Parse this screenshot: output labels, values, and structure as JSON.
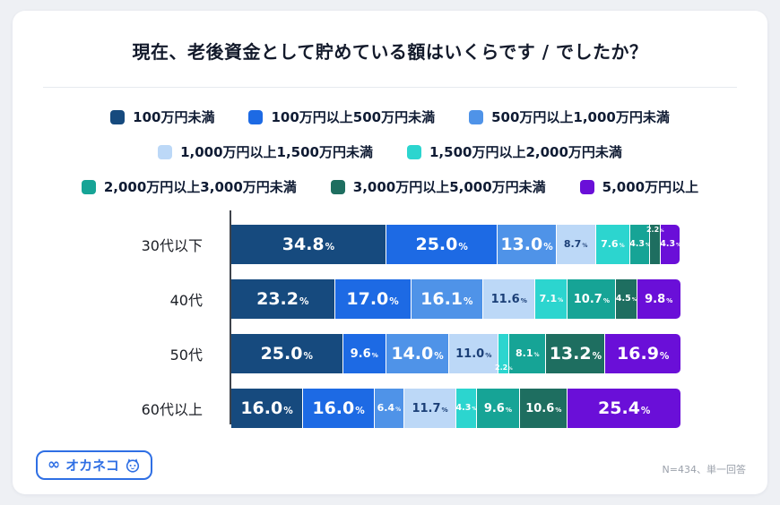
{
  "chart_data": {
    "type": "bar",
    "variant": "horizontal-stacked",
    "title": "現在、老後資金として貯めている額はいくらです / でしたか？",
    "categories": [
      "30代以下",
      "40代",
      "50代",
      "60代以上"
    ],
    "series": [
      {
        "name": "100万円未満",
        "color": "#164a7e",
        "values": [
          34.8,
          23.2,
          25.0,
          16.0
        ]
      },
      {
        "name": "100万円以上500万円未満",
        "color": "#1d6ae4",
        "values": [
          25.0,
          17.0,
          9.6,
          16.0
        ]
      },
      {
        "name": "500万円以上1,000万円未満",
        "color": "#4f93e8",
        "values": [
          13.0,
          16.1,
          14.0,
          6.4
        ]
      },
      {
        "name": "1,000万円以上1,500万円未満",
        "color": "#bcd8f7",
        "values": [
          8.7,
          11.6,
          11.0,
          11.7
        ]
      },
      {
        "name": "1,500万円以上2,000万円未満",
        "color": "#2cd5cf",
        "values": [
          7.6,
          7.1,
          2.2,
          4.3
        ]
      },
      {
        "name": "2,000万円以上3,000万円未満",
        "color": "#16a496",
        "values": [
          4.3,
          10.7,
          8.1,
          9.6
        ]
      },
      {
        "name": "3,000万円以上5,000万円未満",
        "color": "#1e6e60",
        "values": [
          2.2,
          4.5,
          13.2,
          10.6
        ]
      },
      {
        "name": "5,000万円以上",
        "color": "#6a0fd8",
        "values": [
          4.3,
          9.8,
          16.9,
          25.4
        ]
      }
    ],
    "legend_rows": [
      [
        0,
        1,
        2
      ],
      [
        3,
        4
      ],
      [
        5,
        6,
        7
      ]
    ],
    "legend_position": "top",
    "dark_label_series_index": 3,
    "value_suffix": "%",
    "xlabel": "",
    "ylabel": "",
    "xlim": [
      0,
      100
    ],
    "note": "N=434、単一回答"
  },
  "logo": {
    "mark": "∞",
    "text": "オカネコ"
  }
}
